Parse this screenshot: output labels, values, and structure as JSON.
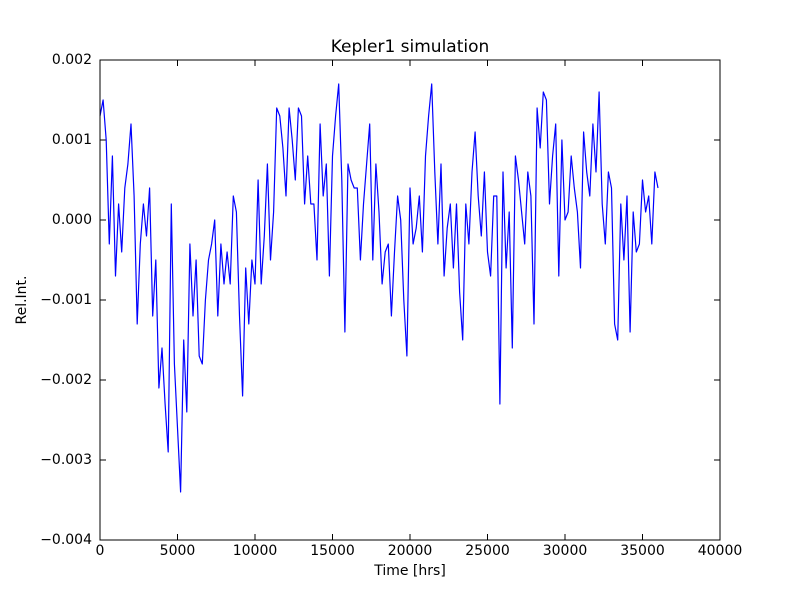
{
  "chart_data": {
    "type": "line",
    "title": "Kepler1 simulation",
    "x_label": "Time [hrs]",
    "y_label": "Rel.Int.",
    "xlim": [
      0,
      40000
    ],
    "xticks": [
      0,
      5000,
      10000,
      15000,
      20000,
      25000,
      30000,
      35000,
      40000
    ],
    "ylim": [
      -0.004,
      0.002
    ],
    "yticks": [
      {
        "value": -0.004,
        "label": "−0.004"
      },
      {
        "value": -0.003,
        "label": "−0.003"
      },
      {
        "value": -0.002,
        "label": "−0.002"
      },
      {
        "value": -0.001,
        "label": "−0.001"
      },
      {
        "value": 0,
        "label": "0.000"
      },
      0.001,
      0.002
    ],
    "grid": false,
    "series": [
      {
        "color": "#0000ff",
        "x": [
          0,
          200,
          400,
          600,
          800,
          1000,
          1200,
          1400,
          1600,
          1800,
          2000,
          2200,
          2400,
          2600,
          2800,
          3000,
          3200,
          3400,
          3600,
          3800,
          4000,
          4200,
          4400,
          4600,
          4800,
          5000,
          5200,
          5400,
          5600,
          5800,
          6000,
          6200,
          6400,
          6600,
          6800,
          7000,
          7200,
          7400,
          7600,
          7800,
          8000,
          8200,
          8400,
          8600,
          8800,
          9000,
          9200,
          9400,
          9600,
          9800,
          10000,
          10200,
          10400,
          10600,
          10800,
          11000,
          11200,
          11400,
          11600,
          11800,
          12000,
          12200,
          12400,
          12600,
          12800,
          13000,
          13200,
          13400,
          13600,
          13800,
          14000,
          14200,
          14400,
          14600,
          14800,
          15000,
          15200,
          15400,
          15600,
          15800,
          16000,
          16200,
          16400,
          16600,
          16800,
          17000,
          17200,
          17400,
          17600,
          17800,
          18000,
          18200,
          18400,
          18600,
          18800,
          19000,
          19200,
          19400,
          19600,
          19800,
          20000,
          20200,
          20400,
          20600,
          20800,
          21000,
          21200,
          21400,
          21600,
          21800,
          22000,
          22200,
          22400,
          22600,
          22800,
          23000,
          23200,
          23400,
          23600,
          23800,
          24000,
          24200,
          24400,
          24600,
          24800,
          25000,
          25200,
          25400,
          25600,
          25800,
          26000,
          26200,
          26400,
          26600,
          26800,
          27000,
          27200,
          27400,
          27600,
          27800,
          28000,
          28200,
          28400,
          28600,
          28800,
          29000,
          29200,
          29400,
          29600,
          29800,
          30000,
          30200,
          30400,
          30600,
          30800,
          31000,
          31200,
          31400,
          31600,
          31800,
          32000,
          32200,
          32400,
          32600,
          32800,
          33000,
          33200,
          33400,
          33600,
          33800,
          34000,
          34200,
          34400,
          34600,
          34800,
          35000,
          35200,
          35400,
          35600,
          35800,
          36000
        ],
        "values": [
          0.0013,
          0.0015,
          0.001,
          -0.0003,
          0.0008,
          -0.0007,
          0.0002,
          -0.0004,
          0.0004,
          0.0007,
          0.0012,
          0.0003,
          -0.0013,
          -0.0003,
          0.0002,
          -0.0002,
          0.0004,
          -0.0012,
          -0.0005,
          -0.0021,
          -0.0016,
          -0.0023,
          -0.0029,
          0.0002,
          -0.0018,
          -0.0026,
          -0.0034,
          -0.0015,
          -0.0024,
          -0.0003,
          -0.0012,
          -0.0005,
          -0.0017,
          -0.0018,
          -0.001,
          -0.0005,
          -0.0003,
          0.0,
          -0.0012,
          -0.0003,
          -0.0008,
          -0.0004,
          -0.0008,
          0.0003,
          0.0001,
          -0.0012,
          -0.0022,
          -0.0006,
          -0.0013,
          -0.0005,
          -0.0008,
          0.0005,
          -0.0008,
          -0.0002,
          0.0007,
          -0.0005,
          0.0001,
          0.0014,
          0.0013,
          0.0009,
          0.0003,
          0.0014,
          0.001,
          0.0005,
          0.0014,
          0.0013,
          0.0002,
          0.0008,
          0.0002,
          0.0002,
          -0.0005,
          0.0012,
          0.0003,
          0.0007,
          -0.0007,
          0.0008,
          0.0013,
          0.0017,
          0.0005,
          -0.0014,
          0.0007,
          0.0005,
          0.0004,
          0.0004,
          -0.0005,
          0.0002,
          0.0007,
          0.0012,
          -0.0005,
          0.0007,
          0.0001,
          -0.0008,
          -0.0004,
          -0.0003,
          -0.0012,
          -0.0004,
          0.0003,
          0.0,
          -0.001,
          -0.0017,
          0.0004,
          -0.0003,
          -0.0001,
          0.0003,
          -0.0004,
          0.0008,
          0.0013,
          0.0017,
          0.0006,
          -0.0003,
          0.0007,
          -0.0007,
          -0.0001,
          0.0002,
          -0.0006,
          0.0002,
          -0.0009,
          -0.0015,
          0.0002,
          -0.0003,
          0.0006,
          0.0011,
          0.0003,
          -0.0002,
          0.0006,
          -0.0004,
          -0.0007,
          0.0003,
          0.0003,
          -0.0023,
          0.0006,
          -0.0006,
          0.0001,
          -0.0016,
          0.0008,
          0.0005,
          0.0001,
          -0.0003,
          0.0006,
          0.0003,
          -0.0013,
          0.0014,
          0.0009,
          0.0016,
          0.0015,
          0.0002,
          0.0008,
          0.0012,
          -0.0007,
          0.001,
          0.0,
          0.0001,
          0.0008,
          0.0004,
          0.0001,
          -0.0006,
          0.0011,
          0.0006,
          0.0003,
          0.0012,
          0.0006,
          0.0016,
          0.0002,
          -0.0003,
          0.0006,
          0.0004,
          -0.0013,
          -0.0015,
          0.0002,
          -0.0005,
          0.0003,
          -0.0014,
          0.0001,
          -0.0004,
          -0.0003,
          0.0005,
          0.0001,
          0.0003,
          -0.0003,
          0.0006,
          0.0004
        ]
      }
    ]
  }
}
